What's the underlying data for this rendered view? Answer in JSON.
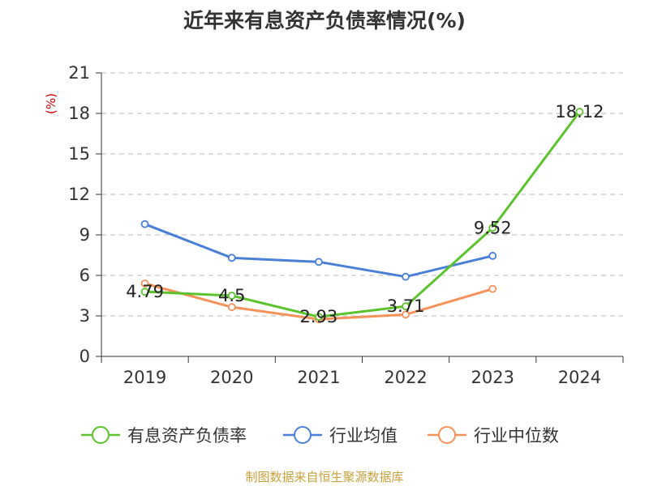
{
  "chart_data": {
    "type": "line",
    "title": "近年来有息资产负债率情况(%)",
    "ylabel": "(%)",
    "categories": [
      "2019",
      "2020",
      "2021",
      "2022",
      "2023",
      "2024"
    ],
    "ylim": [
      0,
      21
    ],
    "yticks": [
      0,
      3,
      6,
      9,
      12,
      15,
      18,
      21
    ],
    "grid": true,
    "legend_position": "bottom",
    "series": [
      {
        "name": "有息资产负债率",
        "color": "#5cc22e",
        "values": [
          4.79,
          4.5,
          2.93,
          3.71,
          9.52,
          18.12
        ],
        "labels": [
          "4.79",
          "4.5",
          "2.93",
          "3.71",
          "9.52",
          "18.12"
        ]
      },
      {
        "name": "行业均值",
        "color": "#4a7fd8",
        "values": [
          9.8,
          7.3,
          7.0,
          5.9,
          7.45,
          null
        ],
        "labels": []
      },
      {
        "name": "行业中位数",
        "color": "#f5925a",
        "values": [
          5.4,
          3.65,
          2.75,
          3.1,
          5.0,
          null
        ],
        "labels": []
      }
    ]
  },
  "source": "制图数据来自恒生聚源数据库"
}
